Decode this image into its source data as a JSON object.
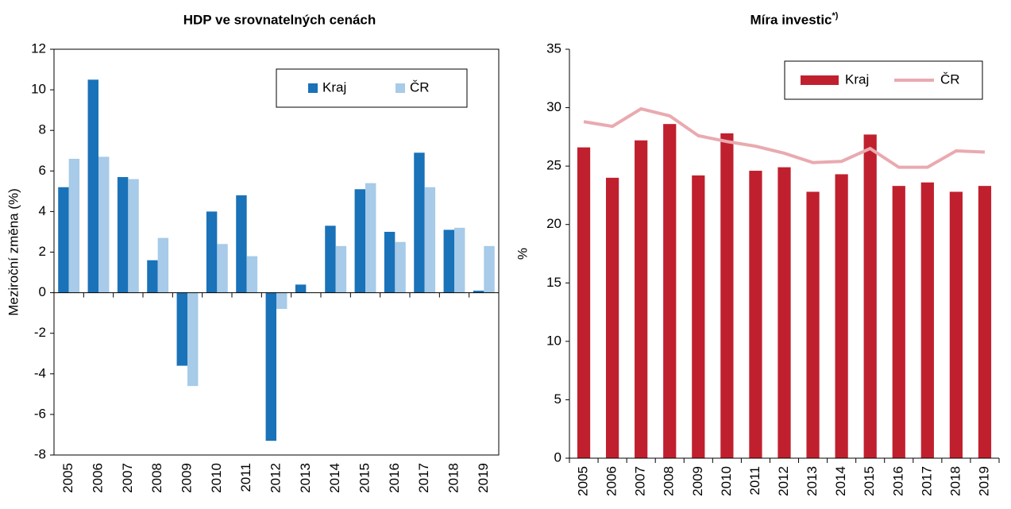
{
  "chart_data": [
    {
      "type": "bar",
      "title": "HDP ve srovnatelných cenách",
      "ylabel": "Meziroční změna (%)",
      "categories": [
        "2005",
        "2006",
        "2007",
        "2008",
        "2009",
        "2010",
        "2011",
        "2012",
        "2013",
        "2014",
        "2015",
        "2016",
        "2017",
        "2018",
        "2019"
      ],
      "series": [
        {
          "name": "Kraj",
          "color": "#1a72b8",
          "values": [
            5.2,
            10.5,
            5.7,
            1.6,
            -3.6,
            4.0,
            4.8,
            -7.3,
            0.4,
            3.3,
            5.1,
            3.0,
            6.9,
            3.1,
            0.1
          ]
        },
        {
          "name": "ČR",
          "color": "#a7cbe8",
          "values": [
            6.6,
            6.7,
            5.6,
            2.7,
            -4.6,
            2.4,
            1.8,
            -0.8,
            0.0,
            2.3,
            5.4,
            2.5,
            5.2,
            3.2,
            2.3
          ]
        }
      ],
      "ylim": [
        -8,
        12
      ],
      "yticks": [
        -8,
        -6,
        -4,
        -2,
        0,
        2,
        4,
        6,
        8,
        10,
        12
      ],
      "frame": true,
      "legend": "upper right"
    },
    {
      "type": "combo",
      "title": "Míra investic",
      "title_note": "*)",
      "ylabel": "%",
      "categories": [
        "2005",
        "2006",
        "2007",
        "2008",
        "2009",
        "2010",
        "2011",
        "2012",
        "2013",
        "2014",
        "2015",
        "2016",
        "2017",
        "2018",
        "2019"
      ],
      "series": [
        {
          "name": "Kraj",
          "type": "bar",
          "color": "#c0202e",
          "values": [
            26.6,
            24.0,
            27.2,
            28.6,
            24.2,
            27.8,
            24.6,
            24.9,
            22.8,
            24.3,
            27.7,
            23.3,
            23.6,
            22.8,
            23.3
          ]
        },
        {
          "name": "ČR",
          "type": "line",
          "color": "#e9aab0",
          "values": [
            28.8,
            28.4,
            29.9,
            29.3,
            27.6,
            27.1,
            26.7,
            26.1,
            25.3,
            25.4,
            26.5,
            24.9,
            24.9,
            26.3,
            26.2
          ]
        }
      ],
      "ylim": [
        0,
        35
      ],
      "yticks": [
        0,
        5,
        10,
        15,
        20,
        25,
        30,
        35
      ],
      "frame": false,
      "legend": "upper right"
    }
  ]
}
